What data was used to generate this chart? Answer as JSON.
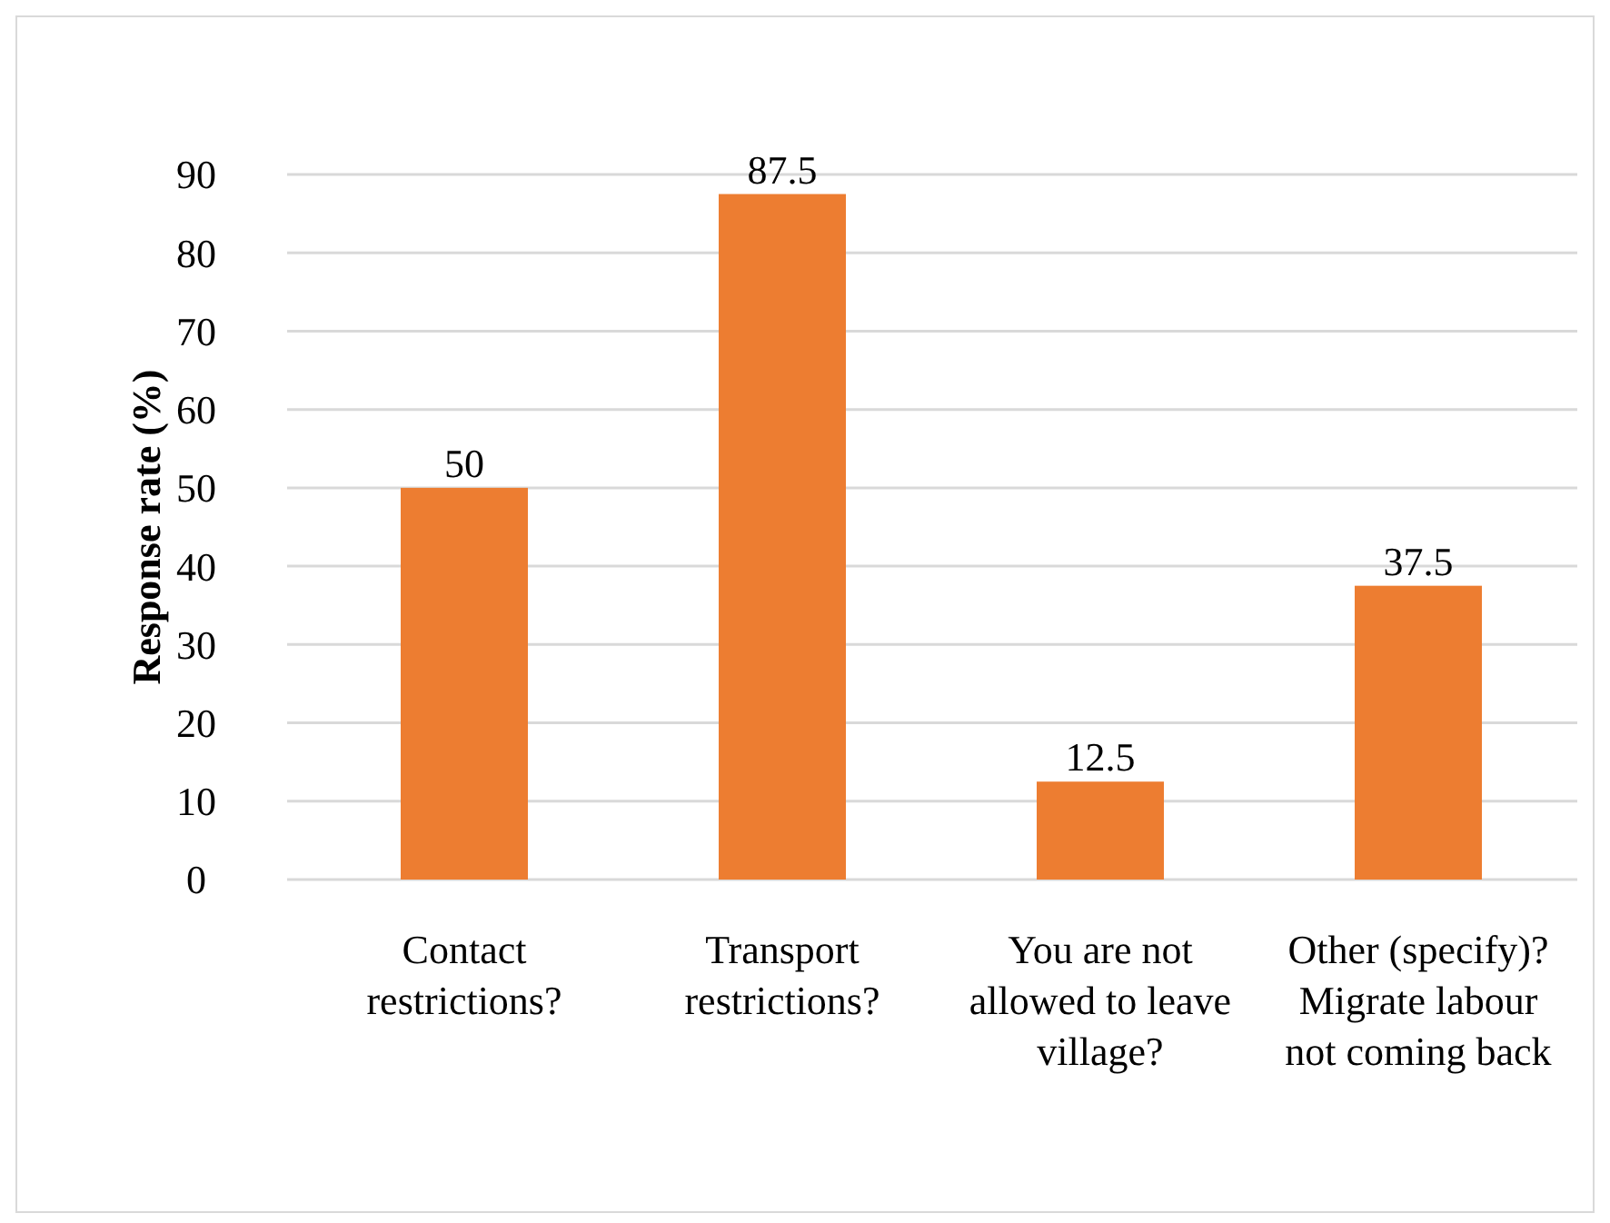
{
  "chart_data": {
    "type": "bar",
    "ylabel": "Response rate (%)",
    "categories": [
      "Contact restrictions?",
      "Transport restrictions?",
      "You are not allowed to leave village?",
      "Other (specify)? Migrate labour not coming back"
    ],
    "values": [
      50,
      87.5,
      12.5,
      37.5
    ],
    "color": "#ed7d31",
    "ylim": [
      0,
      90
    ],
    "yticks": [
      0,
      10,
      20,
      30,
      40,
      50,
      60,
      70,
      80,
      90
    ],
    "grid": true,
    "data_labels": true
  }
}
